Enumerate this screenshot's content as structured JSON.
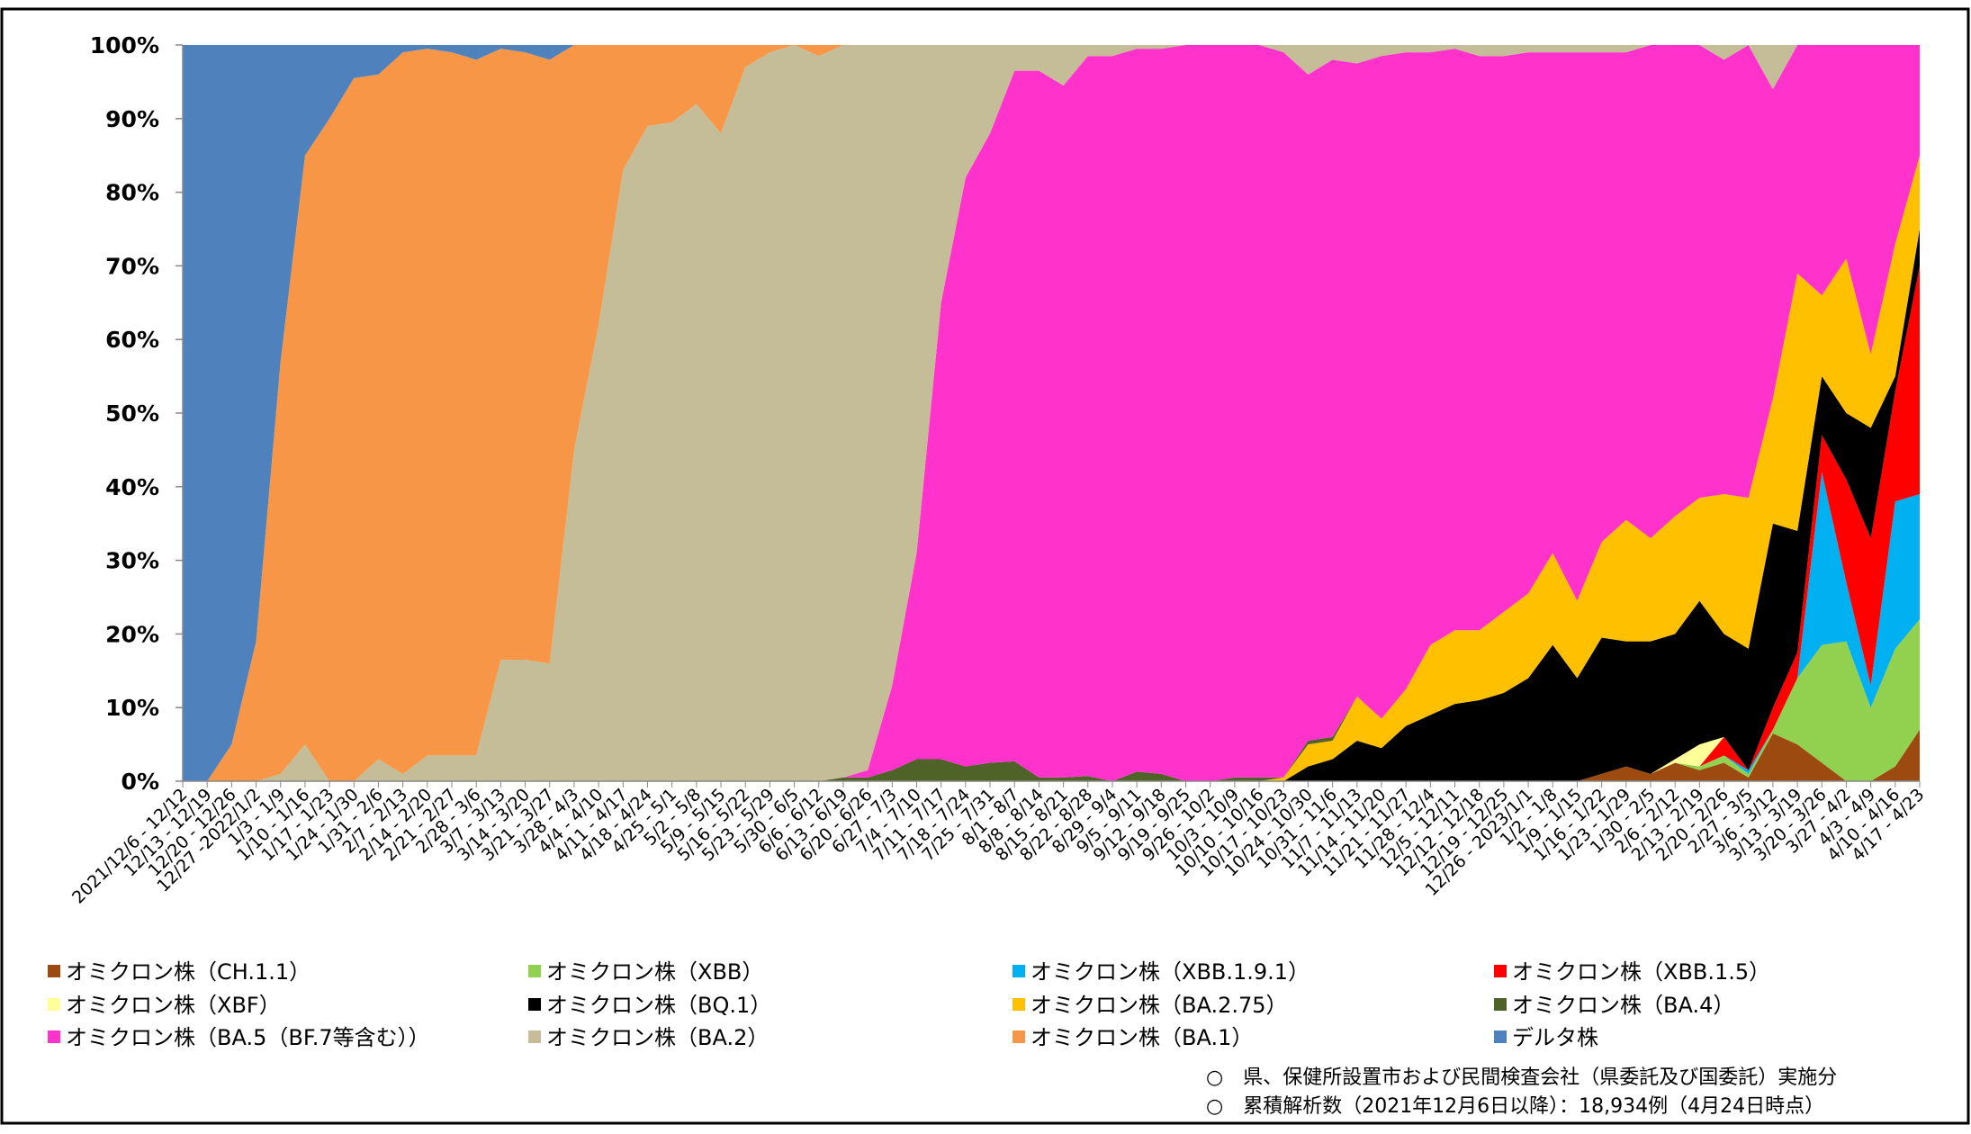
{
  "chart_data": {
    "type": "stacked_area",
    "ylim": [
      0,
      100
    ],
    "yticks": [
      {
        "value": 0,
        "label": "0%"
      },
      {
        "value": 10,
        "label": "10%"
      },
      {
        "value": 20,
        "label": "20%"
      },
      {
        "value": 30,
        "label": "30%"
      },
      {
        "value": 40,
        "label": "40%"
      },
      {
        "value": 50,
        "label": "50%"
      },
      {
        "value": 60,
        "label": "60%"
      },
      {
        "value": 70,
        "label": "70%"
      },
      {
        "value": 80,
        "label": "80%"
      },
      {
        "value": 90,
        "label": "90%"
      },
      {
        "value": 100,
        "label": "100%"
      }
    ],
    "categories": [
      "2021/12/6 - 12/12",
      "12/13 - 12/19",
      "12/20 - 12/26",
      "12/27 -2022/1/2",
      "1/3 - 1/9",
      "1/10 - 1/16",
      "1/17 - 1/23",
      "1/24 - 1/30",
      "1/31 - 2/6",
      "2/7 - 2/13",
      "2/14 - 2/20",
      "2/21 - 2/27",
      "2/28 - 3/6",
      "3/7 - 3/13",
      "3/14 - 3/20",
      "3/21 - 3/27",
      "3/28 - 4/3",
      "4/4 - 4/10",
      "4/11 - 4/17",
      "4/18 - 4/24",
      "4/25 - 5/1",
      "5/2 - 5/8",
      "5/9 - 5/15",
      "5/16 - 5/22",
      "5/23 - 5/29",
      "5/30 - 6/5",
      "6/6 - 6/12",
      "6/13 - 6/19",
      "6/20 - 6/26",
      "6/27 - 7/3",
      "7/4 - 7/10",
      "7/11 - 7/17",
      "7/18 - 7/24",
      "7/25 - 7/31",
      "8/1 - 8/7",
      "8/8 - 8/14",
      "8/15 - 8/21",
      "8/22 - 8/28",
      "8/29 - 9/4",
      "9/5 - 9/11",
      "9/12 - 9/18",
      "9/19 - 9/25",
      "9/26 - 10/2",
      "10/3 - 10/9",
      "10/10 - 10/16",
      "10/17 - 10/23",
      "10/24 - 10/30",
      "10/31 - 11/6",
      "11/7 - 11/13",
      "11/14 - 11/20",
      "11/21 - 11/27",
      "11/28 - 12/4",
      "12/5 - 12/11",
      "12/12 - 12/18",
      "12/19 - 12/25",
      "12/26 - 2023/1/1",
      "1/2 - 1/8",
      "1/9 - 1/15",
      "1/16 - 1/22",
      "1/23 - 1/29",
      "1/30 - 2/5",
      "2/6 - 2/12",
      "2/13 - 2/19",
      "2/20 - 2/26",
      "2/27 - 3/5",
      "3/6 - 3/12",
      "3/13 - 3/19",
      "3/20 - 3/26",
      "3/27 - 4/2",
      "4/3 - 4/9",
      "4/10 - 4/16",
      "4/17 - 4/23"
    ],
    "series": [
      {
        "name": "オミクロン株（CH.1.1）",
        "color": "#9c4a0f",
        "values": [
          0,
          0,
          0,
          0,
          0,
          0,
          0,
          0,
          0,
          0,
          0,
          0,
          0,
          0,
          0,
          0,
          0,
          0,
          0,
          0,
          0,
          0,
          0,
          0,
          0,
          0,
          0,
          0,
          0,
          0,
          0,
          0,
          0,
          0,
          0,
          0,
          0,
          0,
          0,
          0,
          0,
          0,
          0,
          0,
          0,
          0,
          0,
          0,
          0,
          0,
          0,
          0,
          0,
          0,
          0,
          0,
          0,
          0,
          1,
          2,
          1,
          2.5,
          1.5,
          2.5,
          0.5,
          6.5,
          5,
          2.5,
          0,
          0,
          2,
          7
        ]
      },
      {
        "name": "オミクロン株（XBB）",
        "color": "#92d050",
        "values": [
          0,
          0,
          0,
          0,
          0,
          0,
          0,
          0,
          0,
          0,
          0,
          0,
          0,
          0,
          0,
          0,
          0,
          0,
          0,
          0,
          0,
          0,
          0,
          0,
          0,
          0,
          0,
          0,
          0,
          0,
          0,
          0,
          0,
          0,
          0,
          0,
          0,
          0,
          0,
          0,
          0,
          0,
          0,
          0,
          0,
          0,
          0,
          0,
          0,
          0,
          0,
          0,
          0,
          0,
          0,
          0,
          0,
          0,
          0,
          0,
          0,
          0,
          0.5,
          1,
          0.5,
          0.5,
          9,
          16,
          19,
          10,
          16,
          15
        ]
      },
      {
        "name": "オミクロン株（XBB.1.9.1）",
        "color": "#00b0f0",
        "values": [
          0,
          0,
          0,
          0,
          0,
          0,
          0,
          0,
          0,
          0,
          0,
          0,
          0,
          0,
          0,
          0,
          0,
          0,
          0,
          0,
          0,
          0,
          0,
          0,
          0,
          0,
          0,
          0,
          0,
          0,
          0,
          0,
          0,
          0,
          0,
          0,
          0,
          0,
          0,
          0,
          0,
          0,
          0,
          0,
          0,
          0,
          0,
          0,
          0,
          0,
          0,
          0,
          0,
          0,
          0,
          0,
          0,
          0,
          0,
          0,
          0,
          0,
          0,
          0,
          0.5,
          0,
          0,
          23.5,
          8,
          3,
          20,
          17
        ]
      },
      {
        "name": "オミクロン株（XBB.1.5）",
        "color": "#ff0000",
        "values": [
          0,
          0,
          0,
          0,
          0,
          0,
          0,
          0,
          0,
          0,
          0,
          0,
          0,
          0,
          0,
          0,
          0,
          0,
          0,
          0,
          0,
          0,
          0,
          0,
          0,
          0,
          0,
          0,
          0,
          0,
          0,
          0,
          0,
          0,
          0,
          0,
          0,
          0,
          0,
          0,
          0,
          0,
          0,
          0,
          0,
          0,
          0,
          0,
          0,
          0,
          0,
          0,
          0,
          0,
          0,
          0,
          0,
          0,
          0,
          0,
          0,
          0,
          0,
          2.5,
          0,
          3,
          3.5,
          5,
          14,
          20,
          15,
          31
        ]
      },
      {
        "name": "オミクロン株（XBF）",
        "color": "#ffff99",
        "values": [
          0,
          0,
          0,
          0,
          0,
          0,
          0,
          0,
          0,
          0,
          0,
          0,
          0,
          0,
          0,
          0,
          0,
          0,
          0,
          0,
          0,
          0,
          0,
          0,
          0,
          0,
          0,
          0,
          0,
          0,
          0,
          0,
          0,
          0,
          0,
          0,
          0,
          0,
          0,
          0,
          0,
          0,
          0,
          0,
          0,
          0,
          0,
          0,
          0,
          0,
          0,
          0,
          0,
          0,
          0,
          0,
          0,
          0,
          0,
          0,
          0,
          0.5,
          3,
          0,
          0,
          0,
          0,
          0,
          0,
          0,
          0,
          0
        ]
      },
      {
        "name": "オミクロン株（BQ.1）",
        "color": "#000000",
        "values": [
          0,
          0,
          0,
          0,
          0,
          0,
          0,
          0,
          0,
          0,
          0,
          0,
          0,
          0,
          0,
          0,
          0,
          0,
          0,
          0,
          0,
          0,
          0,
          0,
          0,
          0,
          0,
          0,
          0,
          0,
          0,
          0,
          0,
          0,
          0,
          0,
          0,
          0,
          0,
          0,
          0,
          0,
          0,
          0,
          0,
          0,
          2,
          3,
          5.5,
          4.5,
          7.5,
          9,
          10.5,
          11,
          12,
          14,
          18.5,
          14,
          18.5,
          17,
          18,
          17,
          19.5,
          14,
          16.5,
          25,
          16.5,
          8,
          9,
          15,
          2,
          5
        ]
      },
      {
        "name": "オミクロン株（BA.2.75）",
        "color": "#ffc000",
        "values": [
          0,
          0,
          0,
          0,
          0,
          0,
          0,
          0,
          0,
          0,
          0,
          0,
          0,
          0,
          0,
          0,
          0,
          0,
          0,
          0,
          0,
          0,
          0,
          0,
          0,
          0,
          0,
          0,
          0,
          0,
          0,
          0,
          0,
          0,
          0,
          0,
          0,
          0,
          0,
          0,
          0,
          0,
          0,
          0,
          0,
          0.5,
          3,
          2.5,
          6,
          4,
          5,
          9.5,
          10,
          9.5,
          11,
          11.5,
          12.5,
          10.5,
          13,
          16.5,
          14,
          16,
          14,
          19,
          20.5,
          17,
          35,
          11,
          21,
          10,
          18,
          10
        ]
      },
      {
        "name": "オミクロン株（BA.4）",
        "color": "#4f6228",
        "values": [
          0,
          0,
          0,
          0,
          0,
          0,
          0,
          0,
          0,
          0,
          0,
          0,
          0,
          0,
          0,
          0,
          0,
          0,
          0,
          0,
          0,
          0,
          0,
          0,
          0,
          0,
          0,
          0.5,
          0.5,
          1.5,
          3,
          3,
          2,
          2.5,
          2.7,
          0.5,
          0.5,
          0.7,
          0,
          1.3,
          1,
          0,
          0,
          0.5,
          0.5,
          0,
          0.5,
          0.5,
          0,
          0,
          0,
          0,
          0,
          0,
          0,
          0,
          0,
          0,
          0,
          0,
          0,
          0,
          0,
          0,
          0,
          0,
          0,
          0,
          0,
          0,
          0,
          0
        ]
      },
      {
        "name": "オミクロン株（BA.5（BF.7等含む））",
        "color": "#ff33cc",
        "values": [
          0,
          0,
          0,
          0,
          0,
          0,
          0,
          0,
          0,
          0,
          0,
          0,
          0,
          0,
          0,
          0,
          0,
          0,
          0,
          0,
          0,
          0,
          0,
          0,
          0,
          0,
          0,
          0,
          1,
          11.5,
          28,
          62,
          80,
          85.5,
          93.8,
          96,
          94,
          97.8,
          98.5,
          98.2,
          98.5,
          100,
          100,
          99.5,
          99.5,
          98.5,
          90.5,
          92,
          86,
          90,
          86.5,
          80.5,
          79,
          78,
          75.5,
          73.5,
          68,
          74.5,
          66.5,
          63.5,
          67,
          64,
          61.5,
          59,
          61.5,
          42,
          31,
          34,
          29,
          42,
          27,
          15
        ]
      },
      {
        "name": "オミクロン株（BA.2）",
        "color": "#c4bd97",
        "values": [
          0,
          0,
          0,
          0,
          1,
          5,
          0,
          0,
          3,
          1,
          3.5,
          3.5,
          3.5,
          16.5,
          16.5,
          16,
          45,
          62,
          83,
          89,
          89.5,
          92,
          88,
          97,
          99,
          100,
          98.5,
          99.5,
          98.5,
          87,
          69,
          35,
          18,
          12,
          3.5,
          3.5,
          5.5,
          1.5,
          1.5,
          0.5,
          0.5,
          0,
          0,
          0,
          0,
          1,
          4,
          2,
          2.5,
          1.5,
          1,
          1,
          0.5,
          1.5,
          1.5,
          1,
          1,
          1,
          1,
          1,
          0,
          0,
          0,
          2,
          0,
          6,
          0,
          0,
          0,
          0,
          0,
          0
        ]
      },
      {
        "name": "オミクロン株（BA.1）",
        "color": "#f79646",
        "values": [
          0,
          0,
          5,
          19,
          56,
          80,
          90,
          95.5,
          93,
          98,
          96,
          95.5,
          94.5,
          83,
          82.5,
          82,
          55,
          38,
          17,
          11,
          10.5,
          8,
          12,
          3,
          1,
          0,
          1.5,
          0,
          0,
          0,
          0,
          0,
          0,
          0,
          0,
          0,
          0,
          0,
          0,
          0,
          0,
          0,
          0,
          0,
          0,
          0,
          0,
          0,
          0,
          0,
          0,
          0,
          0,
          0,
          0,
          0,
          0,
          0,
          0,
          0,
          0,
          0,
          0,
          0,
          0,
          0,
          0,
          0,
          0,
          0,
          0,
          0
        ]
      },
      {
        "name": "デルタ株",
        "color": "#4f81bd",
        "values": [
          100,
          100,
          95,
          81,
          43,
          15,
          10,
          4.5,
          4,
          1,
          0.5,
          1,
          2,
          0.5,
          1,
          2,
          0,
          0,
          0,
          0,
          0,
          0,
          0,
          0,
          0,
          0,
          0,
          0,
          0,
          0,
          0,
          0,
          0,
          0,
          0,
          0,
          0,
          0,
          0,
          0,
          0,
          0,
          0,
          0,
          0,
          0,
          0,
          0,
          0,
          0,
          0,
          0,
          0,
          0,
          0,
          0,
          0,
          0,
          0,
          0,
          0,
          0,
          0,
          0,
          0,
          0,
          0,
          0,
          0,
          0,
          0,
          0
        ]
      }
    ],
    "notes": [
      "○　県、保健所設置市および民間検査会社（県委託及び国委託）実施分",
      "○　累積解析数（2021年12月6日以降）：18,934例（4月24日時点）"
    ]
  }
}
